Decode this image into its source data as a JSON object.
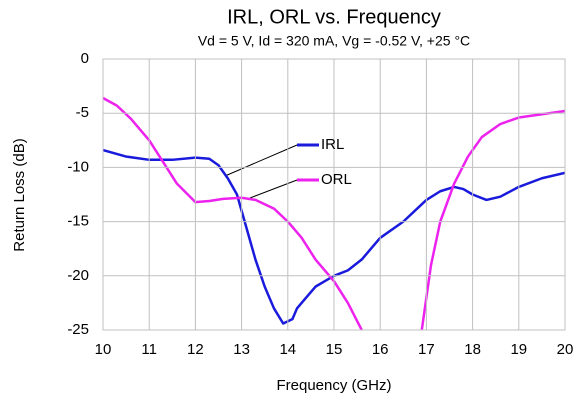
{
  "chart_data": {
    "type": "line",
    "title": "IRL, ORL vs. Frequency",
    "subtitle": "Vd = 5 V, Id = 320 mA, Vg = -0.52 V, +25 °C",
    "x_label": "Frequency (GHz)",
    "y_label": "Return Loss (dB)",
    "xlim": [
      10,
      20
    ],
    "xticks": [
      10,
      11,
      12,
      13,
      14,
      15,
      16,
      17,
      18,
      19,
      20
    ],
    "ylim": [
      -25,
      0
    ],
    "yticks": [
      0,
      -5,
      -10,
      -15,
      -20,
      -25
    ],
    "grid": true,
    "series": [
      {
        "name": "IRL",
        "color": "#1a1adc",
        "x": [
          10,
          10.5,
          11,
          11.5,
          12,
          12.3,
          12.5,
          12.7,
          12.9,
          13.1,
          13.3,
          13.5,
          13.7,
          13.9,
          14.1,
          14.2,
          14.4,
          14.6,
          14.8,
          15,
          15.3,
          15.6,
          16,
          16.5,
          17,
          17.3,
          17.6,
          17.8,
          18,
          18.3,
          18.6,
          19,
          19.5,
          20
        ],
        "values": [
          -8.4,
          -9.0,
          -9.3,
          -9.3,
          -9.1,
          -9.2,
          -9.8,
          -11,
          -12.5,
          -15.5,
          -18.5,
          -21,
          -23,
          -24.4,
          -24,
          -23,
          -22,
          -21,
          -20.5,
          -20,
          -19.5,
          -18.5,
          -16.5,
          -15,
          -13,
          -12.2,
          -11.8,
          -12,
          -12.5,
          -13,
          -12.7,
          -11.8,
          -11,
          -10.5
        ]
      },
      {
        "name": "ORL",
        "color": "#ee22ee",
        "x": [
          10,
          10.3,
          10.6,
          11,
          11.3,
          11.6,
          12,
          12.3,
          12.6,
          13,
          13.3,
          13.7,
          14,
          14.3,
          14.6,
          15,
          15.3,
          15.6,
          16.3,
          16.9,
          17.1,
          17.3,
          17.6,
          17.9,
          18.2,
          18.6,
          19,
          19.5,
          20
        ],
        "values": [
          -3.6,
          -4.3,
          -5.5,
          -7.5,
          -9.5,
          -11.5,
          -13.2,
          -13.1,
          -12.9,
          -12.8,
          -13,
          -13.8,
          -15,
          -16.5,
          -18.5,
          -20.5,
          -22.5,
          -25,
          null,
          -25,
          -19,
          -15,
          -11.5,
          -9,
          -7.2,
          -6,
          -5.4,
          -5.1,
          -4.8
        ]
      }
    ]
  }
}
